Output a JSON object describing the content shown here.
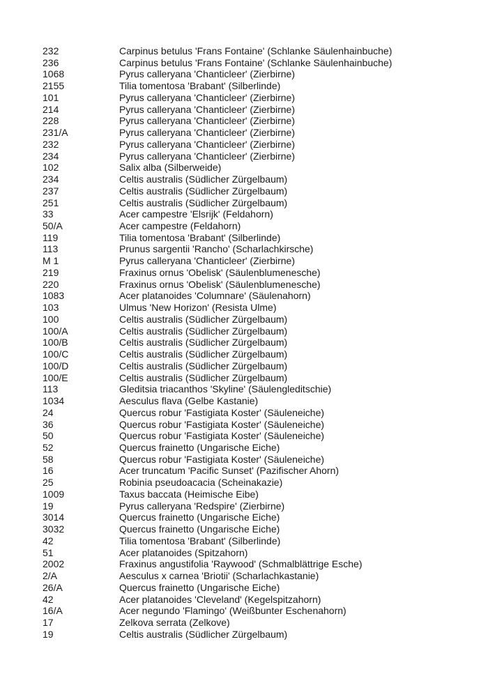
{
  "rows": [
    {
      "number": "232",
      "tree": "Carpinus betulus 'Frans Fontaine' (Schlanke Säulenhainbuche)"
    },
    {
      "number": "236",
      "tree": "Carpinus betulus 'Frans Fontaine' (Schlanke Säulenhainbuche)"
    },
    {
      "number": "1068",
      "tree": "Pyrus calleryana 'Chanticleer' (Zierbirne)"
    },
    {
      "number": "2155",
      "tree": "Tilia tomentosa 'Brabant' (Silberlinde)"
    },
    {
      "number": "101",
      "tree": "Pyrus calleryana 'Chanticleer' (Zierbirne)"
    },
    {
      "number": "214",
      "tree": "Pyrus calleryana 'Chanticleer' (Zierbirne)"
    },
    {
      "number": "228",
      "tree": "Pyrus calleryana 'Chanticleer' (Zierbirne)"
    },
    {
      "number": "231/A",
      "tree": "Pyrus calleryana 'Chanticleer' (Zierbirne)"
    },
    {
      "number": "232",
      "tree": "Pyrus calleryana 'Chanticleer' (Zierbirne)"
    },
    {
      "number": "234",
      "tree": "Pyrus calleryana 'Chanticleer' (Zierbirne)"
    },
    {
      "number": "102",
      "tree": "Salix alba (Silberweide)"
    },
    {
      "number": "234",
      "tree": "Celtis australis (Südlicher Zürgelbaum)"
    },
    {
      "number": "237",
      "tree": "Celtis australis (Südlicher Zürgelbaum)"
    },
    {
      "number": "251",
      "tree": "Celtis australis (Südlicher Zürgelbaum)"
    },
    {
      "number": "33",
      "tree": "Acer campestre 'Elsrijk' (Feldahorn)"
    },
    {
      "number": "50/A",
      "tree": "Acer campestre (Feldahorn)"
    },
    {
      "number": "119",
      "tree": "Tilia tomentosa 'Brabant' (Silberlinde)"
    },
    {
      "number": "113",
      "tree": "Prunus sargentii 'Rancho' (Scharlachkirsche)"
    },
    {
      "number": "M 1",
      "tree": "Pyrus calleryana 'Chanticleer' (Zierbirne)"
    },
    {
      "number": "219",
      "tree": "Fraxinus ornus 'Obelisk' (Säulenblumenesche)"
    },
    {
      "number": "220",
      "tree": "Fraxinus ornus 'Obelisk' (Säulenblumenesche)"
    },
    {
      "number": "1083",
      "tree": "Acer platanoides 'Columnare' (Säulenahorn)"
    },
    {
      "number": "103",
      "tree": "Ulmus 'New Horizon' (Resista Ulme)"
    },
    {
      "number": "100",
      "tree": "Celtis australis (Südlicher Zürgelbaum)"
    },
    {
      "number": "100/A",
      "tree": "Celtis australis (Südlicher Zürgelbaum)"
    },
    {
      "number": "100/B",
      "tree": "Celtis australis (Südlicher Zürgelbaum)"
    },
    {
      "number": "100/C",
      "tree": "Celtis australis (Südlicher Zürgelbaum)"
    },
    {
      "number": "100/D",
      "tree": "Celtis australis (Südlicher Zürgelbaum)"
    },
    {
      "number": "100/E",
      "tree": "Celtis australis (Südlicher Zürgelbaum)"
    },
    {
      "number": "113",
      "tree": "Gleditsia triacanthos 'Skyline' (Säulengleditschie)"
    },
    {
      "number": "1034",
      "tree": "Aesculus flava (Gelbe Kastanie)"
    },
    {
      "number": "24",
      "tree": "Quercus robur 'Fastigiata Koster' (Säuleneiche)"
    },
    {
      "number": "36",
      "tree": "Quercus robur 'Fastigiata Koster' (Säuleneiche)"
    },
    {
      "number": "50",
      "tree": "Quercus robur 'Fastigiata Koster' (Säuleneiche)"
    },
    {
      "number": "52",
      "tree": "Quercus frainetto (Ungarische Eiche)"
    },
    {
      "number": "58",
      "tree": "Quercus robur 'Fastigiata Koster' (Säuleneiche)"
    },
    {
      "number": "16",
      "tree": "Acer truncatum 'Pacific Sunset' (Pazifischer Ahorn)"
    },
    {
      "number": "25",
      "tree": "Robinia pseudoacacia (Scheinakazie)"
    },
    {
      "number": "1009",
      "tree": "Taxus baccata (Heimische Eibe)"
    },
    {
      "number": "19",
      "tree": "Pyrus calleryana 'Redspire' (Zierbirne)"
    },
    {
      "number": "3014",
      "tree": "Quercus frainetto (Ungarische Eiche)"
    },
    {
      "number": "3032",
      "tree": "Quercus frainetto (Ungarische Eiche)"
    },
    {
      "number": "42",
      "tree": "Tilia tomentosa 'Brabant' (Silberlinde)"
    },
    {
      "number": "51",
      "tree": "Acer platanoides (Spitzahorn)"
    },
    {
      "number": "2002",
      "tree": "Fraxinus angustifolia 'Raywood' (Schmalblättrige Esche)"
    },
    {
      "number": "2/A",
      "tree": "Aesculus x carnea 'Briotii' (Scharlachkastanie)"
    },
    {
      "number": "26/A",
      "tree": "Quercus frainetto (Ungarische Eiche)"
    },
    {
      "number": "42",
      "tree": "Acer platanoides 'Cleveland' (Kegelspitzahorn)"
    },
    {
      "number": "16/A",
      "tree": "Acer negundo 'Flamingo' (Weißbunter Eschenahorn)"
    },
    {
      "number": "17",
      "tree": "Zelkova serrata (Zelkove)"
    },
    {
      "number": "19",
      "tree": "Celtis australis (Südlicher Zürgelbaum)"
    }
  ]
}
